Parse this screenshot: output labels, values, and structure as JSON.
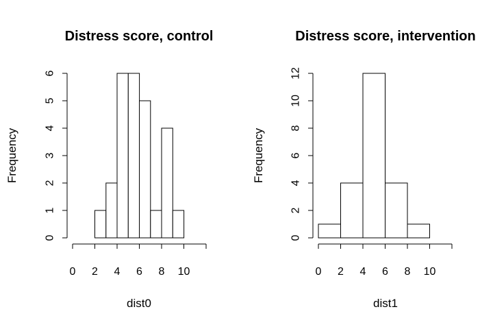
{
  "chart_data": [
    {
      "type": "bar",
      "subtype": "histogram",
      "title": "Distress score, control",
      "xlabel": "dist0",
      "ylabel": "Frequency",
      "bins": [
        [
          2,
          3
        ],
        [
          3,
          4
        ],
        [
          4,
          5
        ],
        [
          5,
          6
        ],
        [
          6,
          7
        ],
        [
          7,
          8
        ],
        [
          8,
          9
        ],
        [
          9,
          10
        ]
      ],
      "values": [
        1,
        2,
        6,
        6,
        5,
        1,
        4,
        1
      ],
      "xlim": [
        0,
        12
      ],
      "ylim": [
        0,
        6
      ],
      "xticks": [
        0,
        2,
        4,
        6,
        8,
        10
      ],
      "yticks": [
        0,
        1,
        2,
        3,
        4,
        5,
        6
      ],
      "grid": false
    },
    {
      "type": "bar",
      "subtype": "histogram",
      "title": "Distress score, intervention",
      "xlabel": "dist1",
      "ylabel": "Frequency",
      "bins": [
        [
          0,
          2
        ],
        [
          2,
          4
        ],
        [
          4,
          6
        ],
        [
          6,
          8
        ],
        [
          8,
          10
        ]
      ],
      "values": [
        1,
        4,
        12,
        4,
        1
      ],
      "xlim": [
        0,
        12
      ],
      "ylim": [
        0,
        12
      ],
      "xticks": [
        0,
        2,
        4,
        6,
        8,
        10
      ],
      "yticks": [
        0,
        2,
        4,
        6,
        8,
        10,
        12
      ],
      "grid": false
    }
  ]
}
